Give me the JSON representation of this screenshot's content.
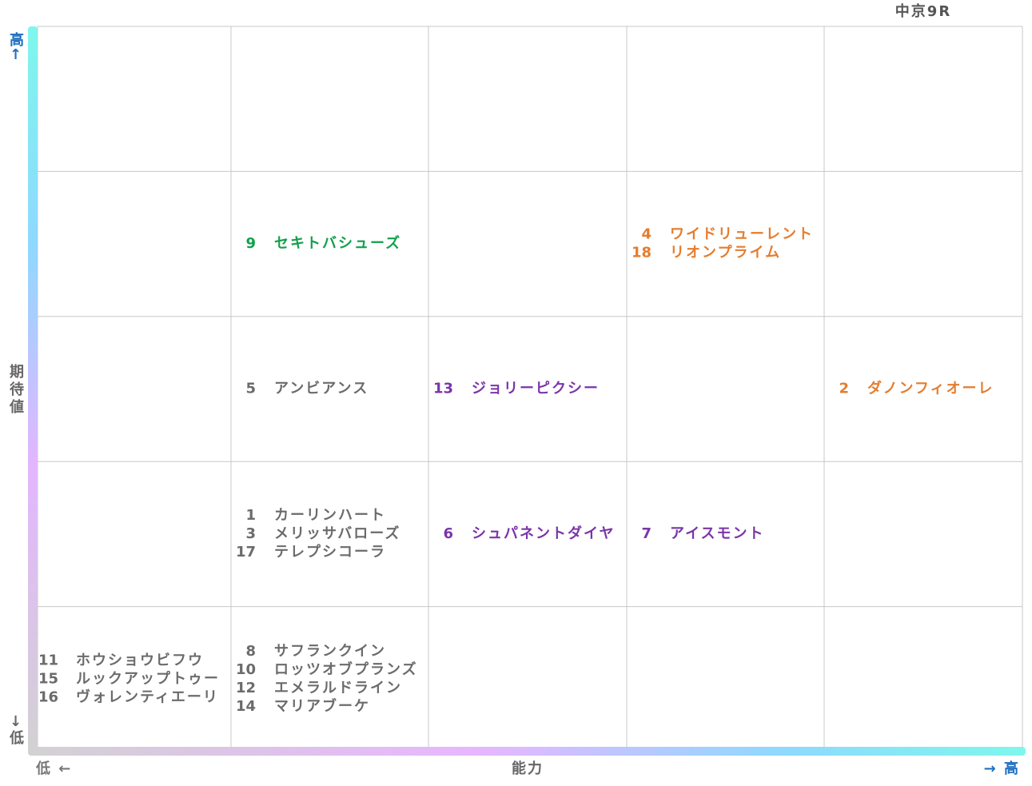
{
  "title": "中京9R",
  "y_axis": {
    "high": "高↑",
    "label": "期待値",
    "low": "↓低"
  },
  "x_axis": {
    "low": "低 ←",
    "label": "能力",
    "high": "→ 高"
  },
  "grid": {
    "rows": [
      [
        [],
        [],
        [],
        [],
        []
      ],
      [
        [],
        [
          {
            "number": 9,
            "name": "セキトバシューズ",
            "color": "#12a04a"
          }
        ],
        [],
        [
          {
            "number": 4,
            "name": "ワイドリューレント",
            "color": "#e47d2e"
          },
          {
            "number": 18,
            "name": "リオンプライム",
            "color": "#e47d2e"
          }
        ],
        []
      ],
      [
        [],
        [
          {
            "number": 5,
            "name": "アンビアンス",
            "color": "#6b6b6b"
          }
        ],
        [
          {
            "number": 13,
            "name": "ジョリーピクシー",
            "color": "#7a35a8"
          }
        ],
        [],
        [
          {
            "number": 2,
            "name": "ダノンフィオーレ",
            "color": "#e47d2e"
          }
        ]
      ],
      [
        [],
        [
          {
            "number": 1,
            "name": "カーリンハート",
            "color": "#6b6b6b"
          },
          {
            "number": 3,
            "name": "メリッサバローズ",
            "color": "#6b6b6b"
          },
          {
            "number": 17,
            "name": "テレプシコーラ",
            "color": "#6b6b6b"
          }
        ],
        [
          {
            "number": 6,
            "name": "シュパネントダイヤ",
            "color": "#7a35a8"
          }
        ],
        [
          {
            "number": 7,
            "name": "アイスモント",
            "color": "#7a35a8"
          }
        ],
        []
      ],
      [
        [
          {
            "number": 11,
            "name": "ホウショウビフウ",
            "color": "#6b6b6b"
          },
          {
            "number": 15,
            "name": "ルックアップトゥー",
            "color": "#6b6b6b"
          },
          {
            "number": 16,
            "name": "ヴォレンティエーリ",
            "color": "#6b6b6b"
          }
        ],
        [
          {
            "number": 8,
            "name": "サフランクイン",
            "color": "#6b6b6b"
          },
          {
            "number": 10,
            "name": "ロッツオブプランズ",
            "color": "#6b6b6b"
          },
          {
            "number": 12,
            "name": "エメラルドライン",
            "color": "#6b6b6b"
          },
          {
            "number": 14,
            "name": "マリアブーケ",
            "color": "#6b6b6b"
          }
        ],
        [],
        [],
        []
      ]
    ]
  }
}
